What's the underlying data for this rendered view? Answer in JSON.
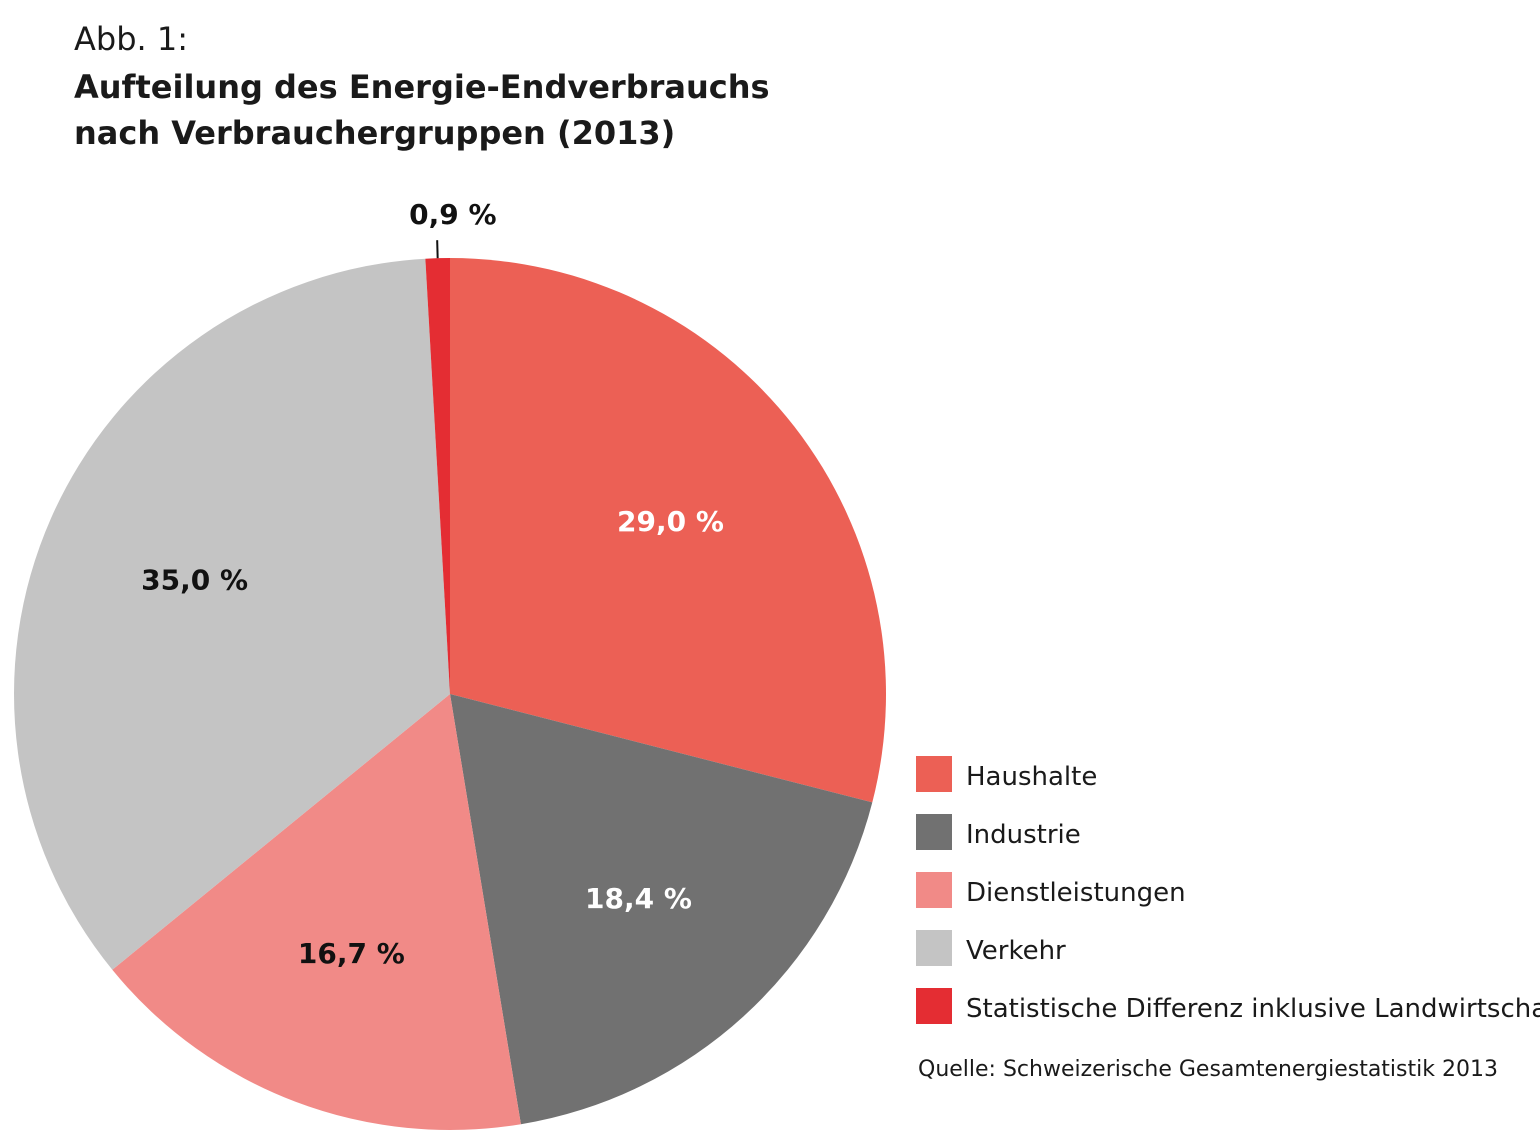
{
  "header": {
    "figure_label": "Abb. 1:",
    "title": "Aufteilung des Energie-Endverbrauchs nach Verbrauchergruppen (2013)"
  },
  "chart_data": {
    "type": "pie",
    "title": "Aufteilung des Energie-Endverbrauchs nach Verbrauchergruppen (2013)",
    "unit": "%",
    "start_angle_deg": 0,
    "direction": "clockwise",
    "legend_position": "bottom-right",
    "slices": [
      {
        "name": "Haushalte",
        "value": 29.0,
        "label": "29,0 %",
        "color": "#ec6055",
        "label_color": "#ffffff"
      },
      {
        "name": "Industrie",
        "value": 18.4,
        "label": "18,4 %",
        "color": "#717171",
        "label_color": "#ffffff"
      },
      {
        "name": "Dienstleistungen",
        "value": 16.7,
        "label": "16,7 %",
        "color": "#f18a87",
        "label_color": "#111111"
      },
      {
        "name": "Verkehr",
        "value": 35.0,
        "label": "35,0 %",
        "color": "#c4c4c4",
        "label_color": "#111111"
      },
      {
        "name": "Statistische Differenz inklusive Landwirtschaft",
        "value": 0.9,
        "label": "0,9 %",
        "color": "#e42d33",
        "label_color": "#111111",
        "label_outside": true
      }
    ]
  },
  "source": "Quelle: Schweizerische Gesamtenergiestatistik 2013"
}
